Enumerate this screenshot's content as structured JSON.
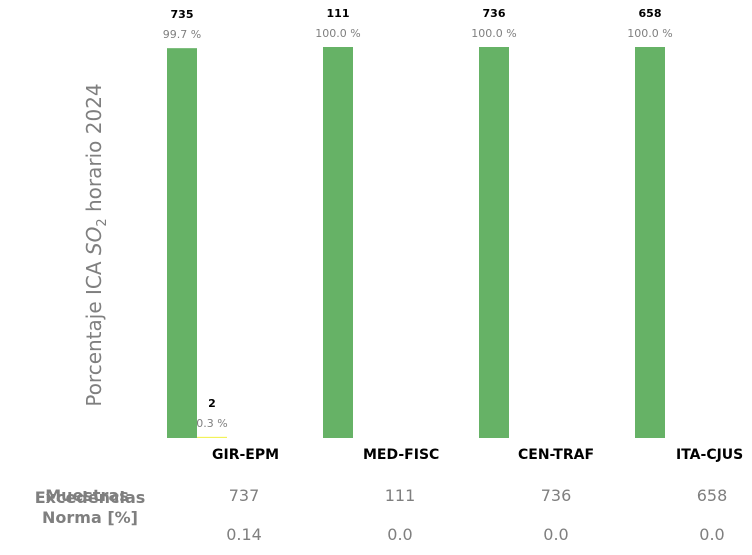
{
  "chart_data": {
    "type": "bar",
    "ylabel_prefix": "Porcentaje ICA ",
    "ylabel_pollutant": "SO",
    "ylabel_subscript": "2",
    "ylabel_suffix": " horario 2024",
    "ylim": [
      0,
      100
    ],
    "categories": [
      "GIR-EPM",
      "MED-FISC",
      "CEN-TRAF",
      "ITA-CJUS"
    ],
    "series": [
      {
        "color": "#66b266",
        "counts": [
          "735",
          "111",
          "736",
          "658"
        ],
        "values": [
          99.7,
          100.0,
          100.0,
          100.0
        ],
        "labels": [
          "99.7 %",
          "100.0 %",
          "100.0 %",
          "100.0 %"
        ]
      },
      {
        "color": "#f2f25a",
        "counts": [
          "2",
          null,
          null,
          null
        ],
        "values": [
          0.3,
          0,
          0,
          0
        ],
        "labels": [
          "0.3 %",
          null,
          null,
          null
        ]
      }
    ]
  },
  "table": {
    "rows": [
      {
        "label": "Muestras",
        "values": [
          "737",
          "111",
          "736",
          "658"
        ]
      },
      {
        "label_line1": "Excedencias",
        "label_line2": "Norma [%]",
        "values": [
          "0.14",
          "0.0",
          "0.0",
          "0.0"
        ]
      }
    ]
  }
}
